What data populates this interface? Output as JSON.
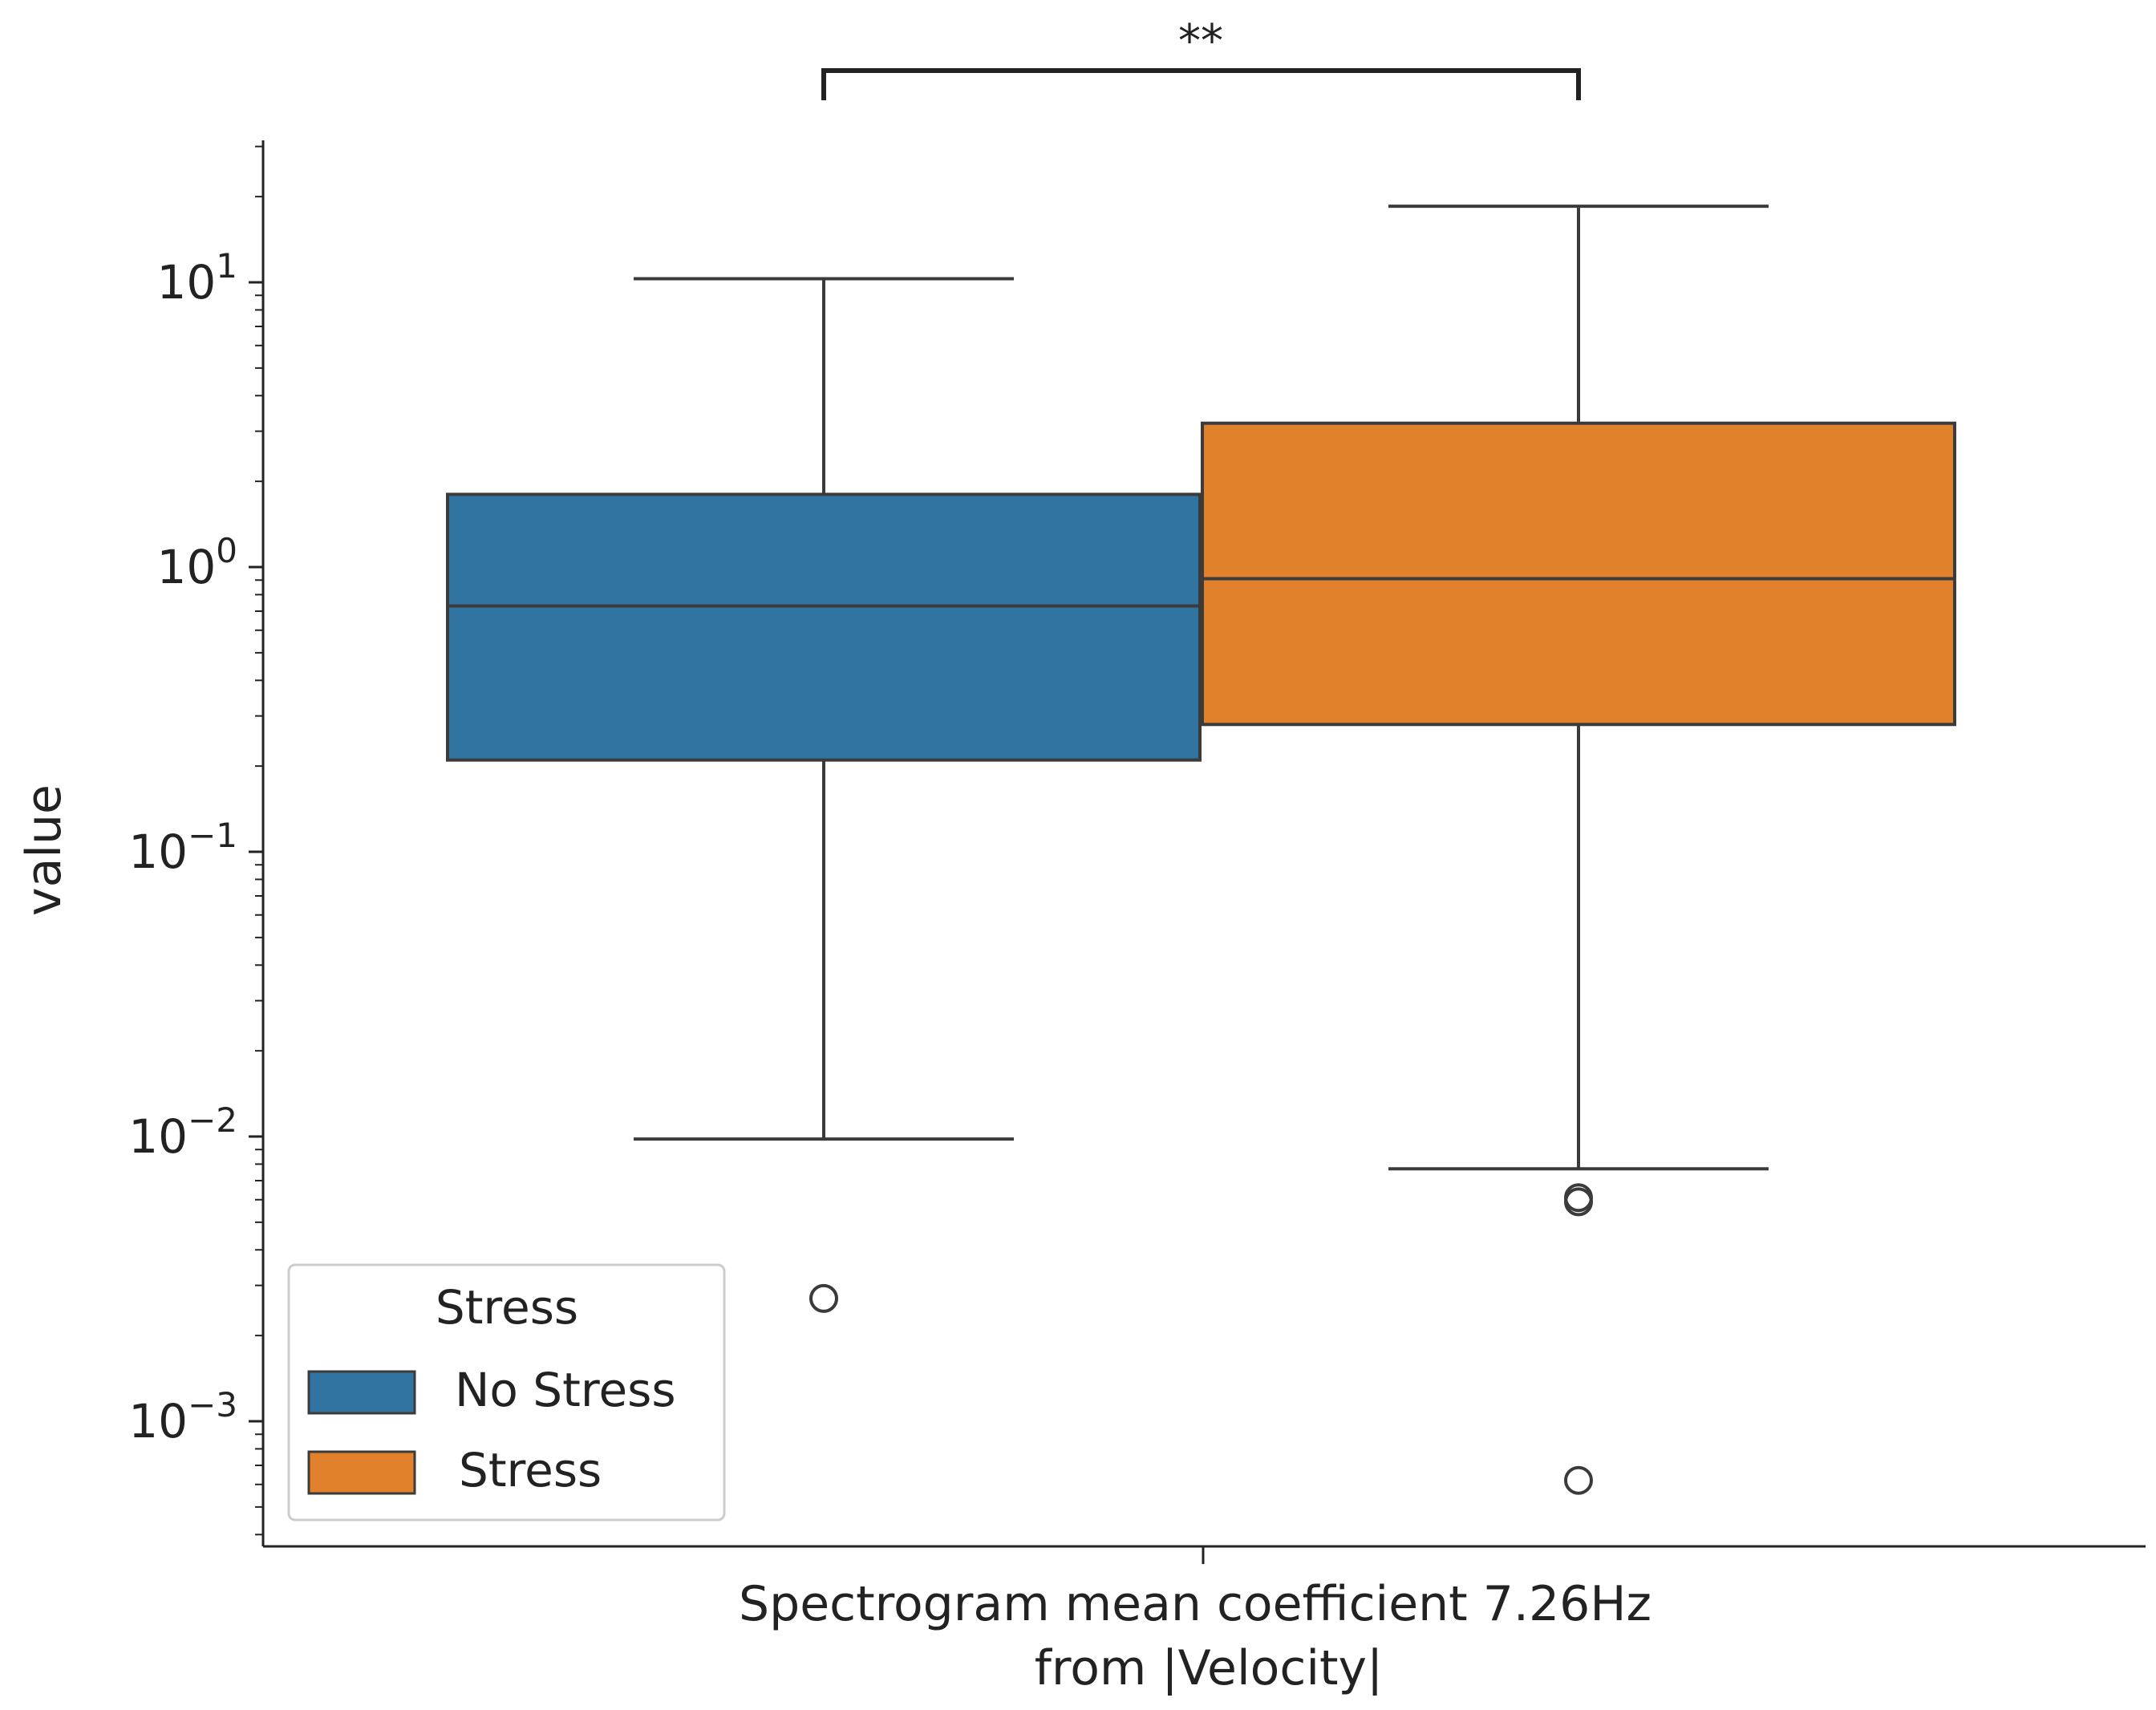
{
  "chart_data": {
    "type": "box",
    "title": "",
    "xlabel_lines": [
      "Spectrogram mean coefficient 7.26Hz",
      "from |Velocity|"
    ],
    "ylabel": "value",
    "yscale": "log",
    "ylim": [
      0.00035,
      30
    ],
    "category": "Spectrogram mean coefficient 7.26Hz from |Velocity|",
    "y_ticks": [
      {
        "value": 0.001,
        "base": "10",
        "exp": "−3"
      },
      {
        "value": 0.01,
        "base": "10",
        "exp": "−2"
      },
      {
        "value": 0.1,
        "base": "10",
        "exp": "−1"
      },
      {
        "value": 1,
        "base": "10",
        "exp": "0"
      },
      {
        "value": 10,
        "base": "10",
        "exp": "1"
      }
    ],
    "series": [
      {
        "name": "No Stress",
        "color": "#3274a1",
        "whisker_low": 0.0098,
        "q1": 0.21,
        "median": 0.73,
        "q3": 1.8,
        "whisker_high": 10.3,
        "outliers": [
          0.0027
        ]
      },
      {
        "name": "Stress",
        "color": "#e1812c",
        "whisker_low": 0.0077,
        "q1": 0.28,
        "median": 0.91,
        "q3": 3.2,
        "whisker_high": 18.5,
        "outliers": [
          0.0061,
          0.0059,
          0.00062
        ]
      }
    ],
    "significance": {
      "label": "**",
      "between": [
        "No Stress",
        "Stress"
      ]
    },
    "legend": {
      "title": "Stress",
      "position": "lower-left",
      "entries": [
        "No Stress",
        "Stress"
      ]
    }
  }
}
